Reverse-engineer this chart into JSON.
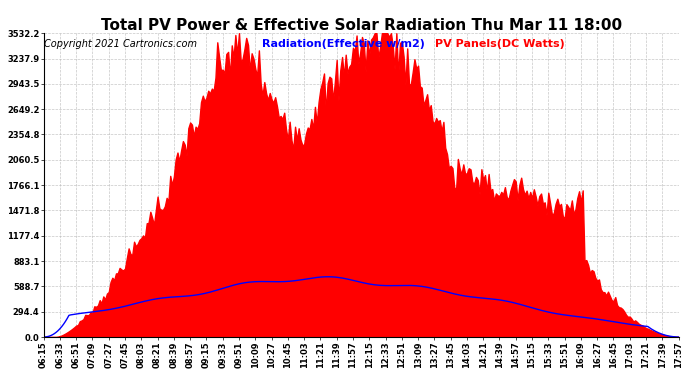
{
  "title": "Total PV Power & Effective Solar Radiation Thu Mar 11 18:00",
  "copyright": "Copyright 2021 Cartronics.com",
  "legend_radiation": "Radiation(Effective w/m2)",
  "legend_pv": "PV Panels(DC Watts)",
  "radiation_color": "blue",
  "pv_color": "red",
  "background_color": "#ffffff",
  "grid_color": "#b0b0b0",
  "ymax": 3532.2,
  "ymin": 0.0,
  "yticks": [
    0.0,
    294.4,
    588.7,
    883.1,
    1177.4,
    1471.8,
    1766.1,
    2060.5,
    2354.8,
    2649.2,
    2943.5,
    3237.9,
    3532.2
  ],
  "ytick_labels": [
    "0.0",
    "294.4",
    "588.7",
    "883.1",
    "1177.4",
    "1471.8",
    "1766.1",
    "2060.5",
    "2354.8",
    "2649.2",
    "2943.5",
    "3237.9",
    "3532.2"
  ],
  "title_fontsize": 11,
  "copyright_fontsize": 7,
  "legend_fontsize": 8,
  "tick_fontsize": 6,
  "xtick_interval_minutes": 18
}
